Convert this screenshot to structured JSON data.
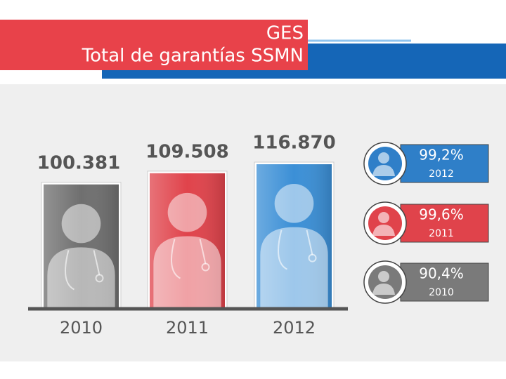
{
  "chart_data": {
    "type": "bar",
    "title": "GES",
    "subtitle": "Total de garantías SSMN",
    "categories": [
      "2010",
      "2011",
      "2012"
    ],
    "values": [
      100381,
      109508,
      116870
    ],
    "value_labels": [
      "100.381",
      "109.508",
      "116.870"
    ],
    "colors": [
      "#6f6f6f",
      "#e0434b",
      "#3b8fd6"
    ]
  },
  "coverage": {
    "categories": [
      "2012",
      "2011",
      "2010"
    ],
    "values": [
      99.2,
      99.6,
      90.4
    ],
    "value_labels": [
      "99,2%",
      "99,6%",
      "90,4%"
    ],
    "colors": [
      "#2f7fc8",
      "#e0434b",
      "#7a7a7a"
    ]
  }
}
